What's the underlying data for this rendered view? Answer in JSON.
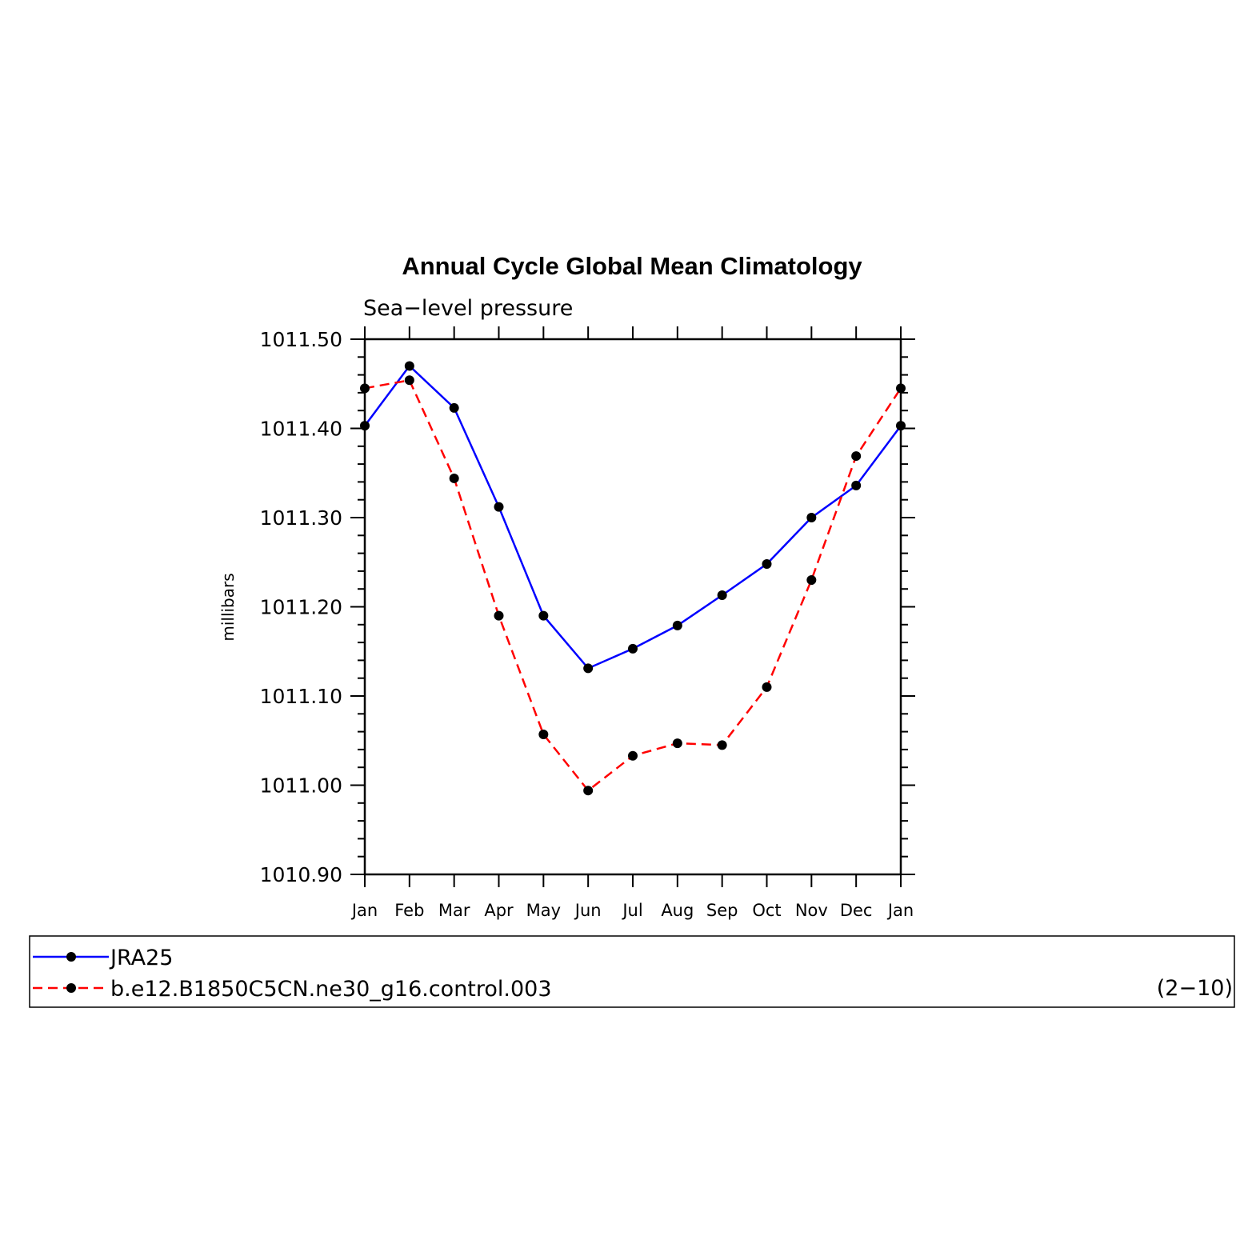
{
  "chart_data": {
    "type": "line",
    "title": "Annual Cycle Global Mean Climatology",
    "subtitle": "Sea−level pressure",
    "xlabel": "",
    "ylabel": "millibars",
    "categories": [
      "Jan",
      "Feb",
      "Mar",
      "Apr",
      "May",
      "Jun",
      "Jul",
      "Aug",
      "Sep",
      "Oct",
      "Nov",
      "Dec",
      "Jan"
    ],
    "ylim": [
      1010.9,
      1011.5
    ],
    "yticks": [
      "1010.90",
      "1011.00",
      "1011.10",
      "1011.20",
      "1011.30",
      "1011.40",
      "1011.50"
    ],
    "series": [
      {
        "name": "JRA25",
        "color": "#0000ff",
        "style": "solid",
        "values": [
          1011.403,
          1011.47,
          1011.423,
          1011.312,
          1011.19,
          1011.131,
          1011.153,
          1011.179,
          1011.213,
          1011.248,
          1011.3,
          1011.336,
          1011.403
        ]
      },
      {
        "name": "b.e12.B1850C5CN.ne30_g16.control.003",
        "color": "#ff0000",
        "style": "dashed",
        "values": [
          1011.445,
          1011.454,
          1011.344,
          1011.19,
          1011.057,
          1010.994,
          1011.033,
          1011.047,
          1011.045,
          1011.11,
          1011.23,
          1011.369,
          1011.445
        ]
      }
    ],
    "grid": false,
    "legend_position": "bottom",
    "legend_note": "(2−10)"
  }
}
